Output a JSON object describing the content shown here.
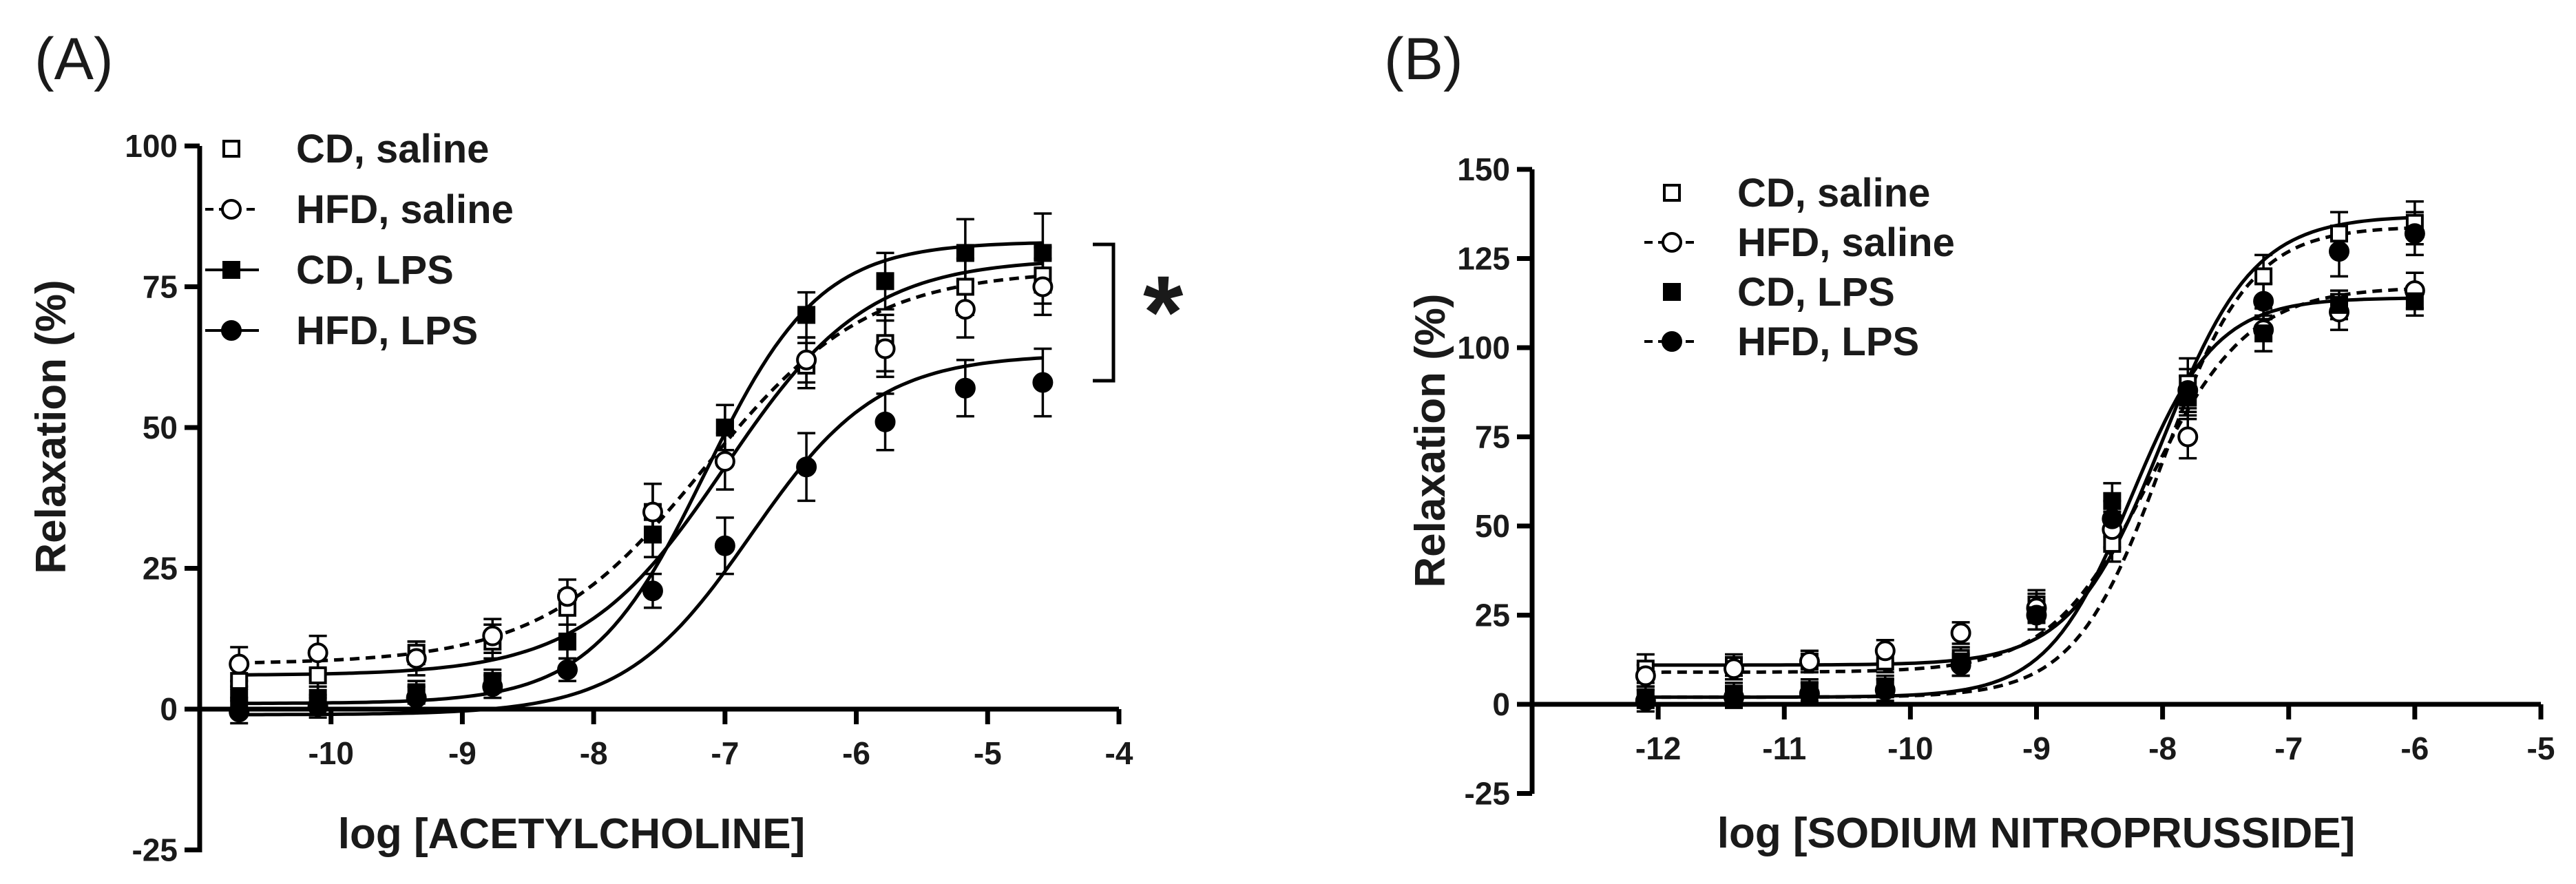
{
  "chart_data": [
    {
      "panel": "(A)",
      "type": "line",
      "xlabel": "log [ACETYLCHOLINE]",
      "ylabel": "Relaxation (%)",
      "xlim": [
        -11,
        -4
      ],
      "ylim": [
        -25,
        100
      ],
      "xticks": [
        -10,
        -9,
        -8,
        -7,
        -6,
        -5,
        -4
      ],
      "yticks": [
        -25,
        0,
        25,
        50,
        75,
        100
      ],
      "x": [
        -10.7,
        -10.1,
        -9.35,
        -8.77,
        -8.2,
        -7.55,
        -7.0,
        -6.38,
        -5.78,
        -5.17,
        -4.58
      ],
      "significance": "*",
      "series": [
        {
          "name": "CD, saline",
          "marker": "open-square",
          "dashed": false,
          "values": [
            5,
            6,
            10,
            12,
            18,
            35,
            50,
            61,
            65,
            75,
            77
          ],
          "errors": [
            3,
            4,
            2,
            3,
            3,
            5,
            4,
            4,
            5,
            5,
            5
          ],
          "fit": {
            "bottom": 6,
            "top": 80,
            "logEC50": -7.0,
            "hill": 0.8
          }
        },
        {
          "name": "HFD, saline",
          "marker": "open-circle",
          "dashed": true,
          "values": [
            8,
            10,
            9,
            13,
            20,
            35,
            44,
            62,
            64,
            71,
            75
          ],
          "errors": [
            3,
            3,
            3,
            3,
            3,
            5,
            5,
            4,
            5,
            5,
            5
          ],
          "fit": {
            "bottom": 8,
            "top": 78,
            "logEC50": -7.15,
            "hill": 0.7
          }
        },
        {
          "name": "CD, LPS",
          "marker": "filled-square",
          "dashed": false,
          "values": [
            2,
            2,
            3,
            5,
            12,
            31,
            50,
            70,
            76,
            81,
            81
          ],
          "errors": [
            2,
            2,
            2,
            2,
            3,
            4,
            4,
            4,
            5,
            6,
            7
          ],
          "fit": {
            "bottom": 1,
            "top": 83,
            "logEC50": -7.15,
            "hill": 1.0
          }
        },
        {
          "name": "HFD, LPS",
          "marker": "filled-circle",
          "dashed": false,
          "values": [
            -0.5,
            0.5,
            2,
            4,
            7,
            21,
            29,
            43,
            51,
            57,
            58
          ],
          "errors": [
            2,
            2,
            2,
            2,
            2,
            3,
            5,
            6,
            5,
            5,
            6
          ],
          "fit": {
            "bottom": -1,
            "top": 63,
            "logEC50": -6.8,
            "hill": 0.9
          }
        }
      ]
    },
    {
      "panel": "(B)",
      "type": "line",
      "xlabel": "log [SODIUM NITROPRUSSIDE]",
      "ylabel": "Relaxation (%)",
      "xlim": [
        -13,
        -5
      ],
      "ylim": [
        -25,
        150
      ],
      "xticks": [
        -12,
        -11,
        -10,
        -9,
        -8,
        -7,
        -6,
        -5
      ],
      "yticks": [
        -25,
        0,
        25,
        50,
        75,
        100,
        125,
        150
      ],
      "x": [
        -12.1,
        -11.4,
        -10.8,
        -10.2,
        -9.6,
        -9.0,
        -8.4,
        -7.8,
        -7.2,
        -6.6,
        -6.0
      ],
      "series": [
        {
          "name": "CD, saline",
          "marker": "open-square",
          "dashed": false,
          "values": [
            10,
            11,
            12,
            12,
            13,
            28,
            45,
            90,
            120,
            132,
            135
          ],
          "errors": [
            4,
            3,
            3,
            3,
            3,
            4,
            5,
            7,
            6,
            6,
            6
          ],
          "fit": {
            "bottom": 11,
            "top": 137,
            "logEC50": -8.0,
            "hill": 1.2
          }
        },
        {
          "name": "HFD, saline",
          "marker": "open-circle",
          "dashed": true,
          "values": [
            8,
            10,
            12,
            15,
            20,
            27,
            49,
            75,
            105,
            110,
            116
          ],
          "errors": [
            3,
            3,
            3,
            3,
            3,
            4,
            5,
            6,
            6,
            5,
            5
          ],
          "fit": {
            "bottom": 9,
            "top": 117,
            "logEC50": -8.1,
            "hill": 1.1
          }
        },
        {
          "name": "CD, LPS",
          "marker": "filled-square",
          "dashed": false,
          "values": [
            2,
            3,
            4,
            5,
            12,
            25,
            57,
            86,
            104,
            112,
            113
          ],
          "errors": [
            3,
            3,
            3,
            3,
            4,
            4,
            5,
            6,
            5,
            4,
            4
          ],
          "fit": {
            "bottom": 2,
            "top": 114,
            "logEC50": -8.25,
            "hill": 1.3
          }
        },
        {
          "name": "HFD, LPS",
          "marker": "filled-circle",
          "dashed": true,
          "values": [
            1,
            2,
            3,
            4,
            11,
            25,
            52,
            88,
            113,
            127,
            132
          ],
          "errors": [
            3,
            3,
            3,
            3,
            3,
            4,
            5,
            6,
            5,
            7,
            6
          ],
          "fit": {
            "bottom": 2,
            "top": 134,
            "logEC50": -8.0,
            "hill": 1.25
          }
        }
      ]
    }
  ]
}
